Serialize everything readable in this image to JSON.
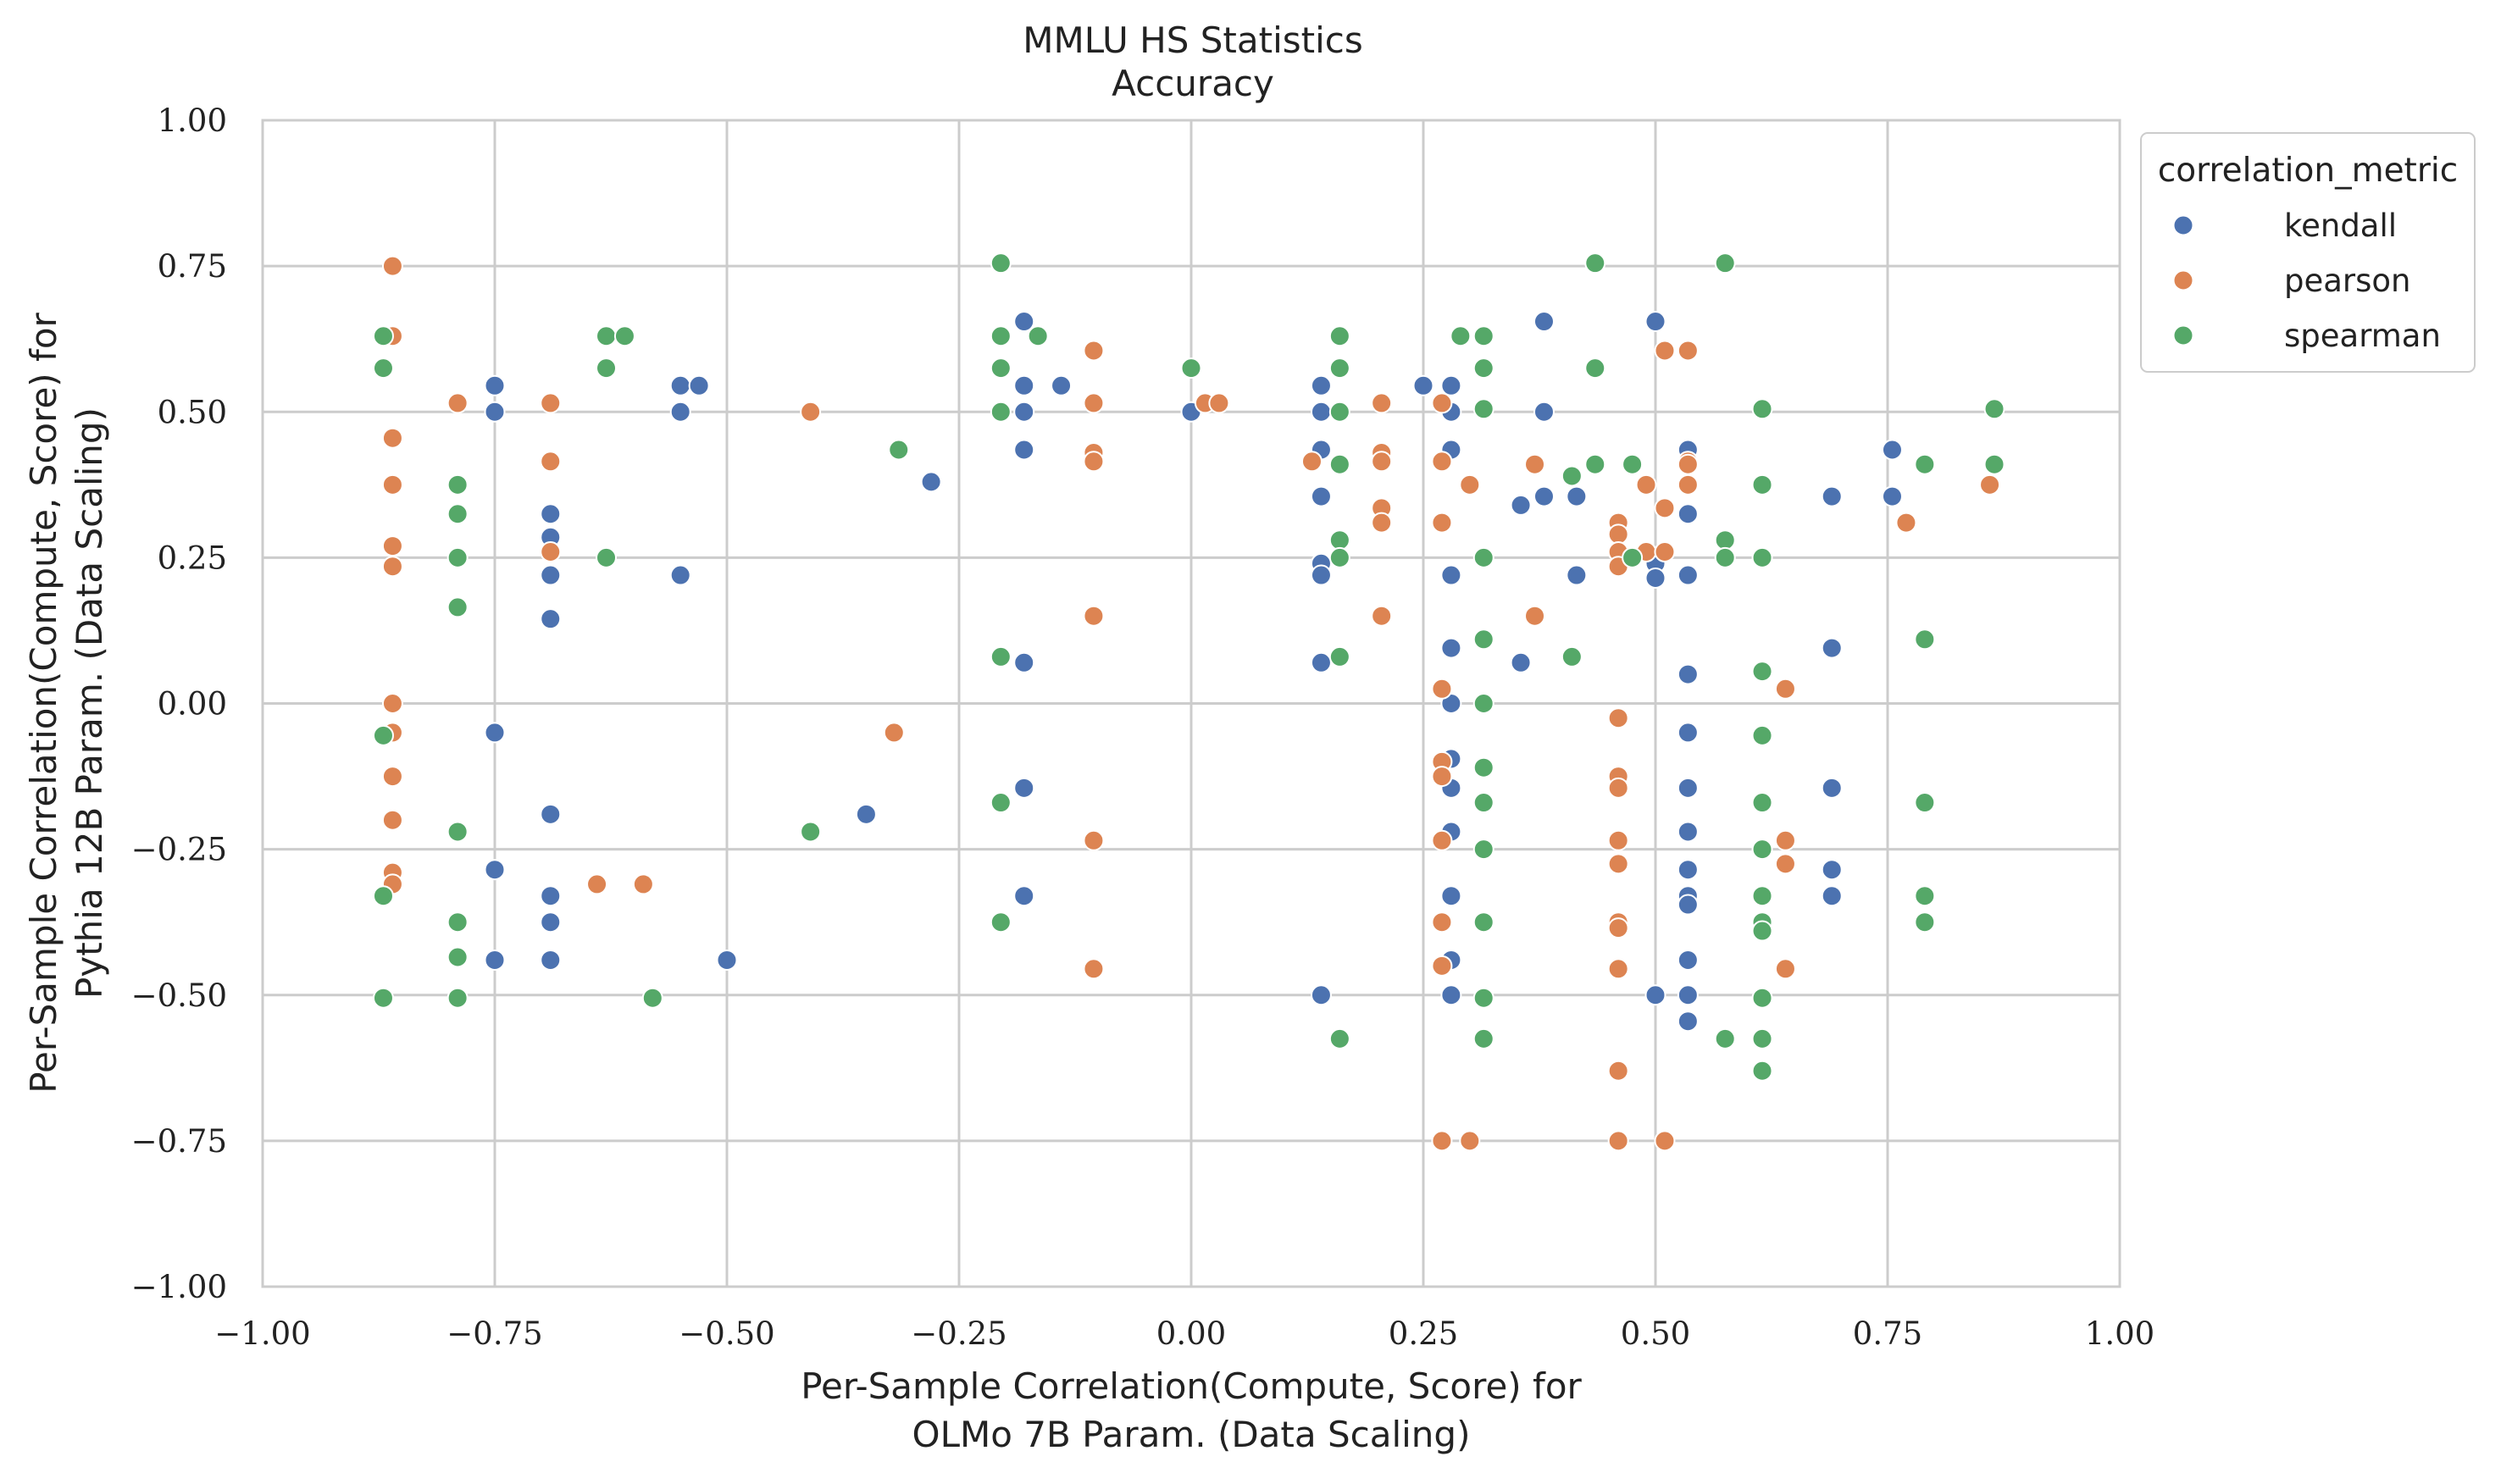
{
  "chart_data": {
    "type": "scatter",
    "title": "MMLU HS Statistics",
    "subtitle": "Accuracy",
    "xlabel": [
      "Per-Sample Correlation(Compute, Score) for",
      "OLMo 7B Param. (Data Scaling)"
    ],
    "ylabel": [
      "Per-Sample Correlation(Compute, Score) for",
      "Pythia 12B Param. (Data Scaling)"
    ],
    "xlim": [
      -1.0,
      1.0
    ],
    "ylim": [
      -1.0,
      1.0
    ],
    "xticks": [
      -1.0,
      -0.75,
      -0.5,
      -0.25,
      0.0,
      0.25,
      0.5,
      0.75,
      1.0
    ],
    "yticks": [
      -1.0,
      -0.75,
      -0.5,
      -0.25,
      0.0,
      0.25,
      0.5,
      0.75,
      1.0
    ],
    "xtick_labels": [
      "−1.00",
      "−0.75",
      "−0.50",
      "−0.25",
      "0.00",
      "0.25",
      "0.50",
      "0.75",
      "1.00"
    ],
    "ytick_labels": [
      "−1.00",
      "−0.75",
      "−0.50",
      "−0.25",
      "0.00",
      "0.25",
      "0.50",
      "0.75",
      "1.00"
    ],
    "grid": true,
    "legend": {
      "title": "correlation_metric",
      "position": "outside-top-right"
    },
    "series": [
      {
        "name": "kendall",
        "color": "#4c72b0",
        "points": [
          [
            -0.75,
            0.545
          ],
          [
            -0.75,
            0.5
          ],
          [
            -0.75,
            -0.05
          ],
          [
            -0.75,
            -0.285
          ],
          [
            -0.75,
            -0.44
          ],
          [
            -0.69,
            0.325
          ],
          [
            -0.69,
            0.285
          ],
          [
            -0.69,
            0.22
          ],
          [
            -0.69,
            0.145
          ],
          [
            -0.69,
            -0.19
          ],
          [
            -0.69,
            -0.33
          ],
          [
            -0.69,
            -0.375
          ],
          [
            -0.69,
            -0.44
          ],
          [
            -0.55,
            0.545
          ],
          [
            -0.53,
            0.545
          ],
          [
            -0.55,
            0.5
          ],
          [
            -0.55,
            0.22
          ],
          [
            -0.5,
            -0.44
          ],
          [
            -0.35,
            -0.19
          ],
          [
            -0.28,
            0.38
          ],
          [
            -0.18,
            0.655
          ],
          [
            -0.18,
            0.545
          ],
          [
            -0.18,
            0.5
          ],
          [
            -0.18,
            0.435
          ],
          [
            -0.18,
            0.07
          ],
          [
            -0.18,
            -0.145
          ],
          [
            -0.18,
            -0.33
          ],
          [
            -0.14,
            0.545
          ],
          [
            0.0,
            0.5
          ],
          [
            0.14,
            0.545
          ],
          [
            0.14,
            0.5
          ],
          [
            0.14,
            0.435
          ],
          [
            0.14,
            0.355
          ],
          [
            0.14,
            0.24
          ],
          [
            0.14,
            0.22
          ],
          [
            0.14,
            0.07
          ],
          [
            0.14,
            -0.5
          ],
          [
            0.25,
            0.545
          ],
          [
            0.28,
            0.545
          ],
          [
            0.28,
            0.5
          ],
          [
            0.28,
            0.435
          ],
          [
            0.28,
            0.22
          ],
          [
            0.28,
            0.095
          ],
          [
            0.28,
            0.0
          ],
          [
            0.28,
            -0.095
          ],
          [
            0.28,
            -0.145
          ],
          [
            0.28,
            -0.22
          ],
          [
            0.28,
            -0.33
          ],
          [
            0.28,
            -0.44
          ],
          [
            0.28,
            -0.5
          ],
          [
            0.355,
            0.34
          ],
          [
            0.355,
            0.07
          ],
          [
            0.38,
            0.655
          ],
          [
            0.38,
            0.5
          ],
          [
            0.38,
            0.355
          ],
          [
            0.415,
            0.355
          ],
          [
            0.415,
            0.22
          ],
          [
            0.5,
            0.655
          ],
          [
            0.5,
            0.24
          ],
          [
            0.5,
            0.215
          ],
          [
            0.5,
            -0.5
          ],
          [
            0.535,
            0.435
          ],
          [
            0.535,
            0.325
          ],
          [
            0.535,
            0.22
          ],
          [
            0.535,
            0.05
          ],
          [
            0.535,
            -0.05
          ],
          [
            0.535,
            -0.145
          ],
          [
            0.535,
            -0.22
          ],
          [
            0.535,
            -0.285
          ],
          [
            0.535,
            -0.33
          ],
          [
            0.535,
            -0.345
          ],
          [
            0.535,
            -0.44
          ],
          [
            0.535,
            -0.5
          ],
          [
            0.535,
            -0.545
          ],
          [
            0.69,
            0.355
          ],
          [
            0.69,
            0.095
          ],
          [
            0.69,
            -0.145
          ],
          [
            0.69,
            -0.285
          ],
          [
            0.69,
            -0.33
          ],
          [
            0.755,
            0.435
          ],
          [
            0.755,
            0.355
          ]
        ]
      },
      {
        "name": "pearson",
        "color": "#dd8452",
        "points": [
          [
            -0.86,
            0.75
          ],
          [
            -0.86,
            0.63
          ],
          [
            -0.86,
            0.455
          ],
          [
            -0.86,
            0.375
          ],
          [
            -0.86,
            0.27
          ],
          [
            -0.86,
            0.235
          ],
          [
            -0.86,
            0.0
          ],
          [
            -0.86,
            -0.05
          ],
          [
            -0.86,
            -0.125
          ],
          [
            -0.86,
            -0.2
          ],
          [
            -0.86,
            -0.29
          ],
          [
            -0.86,
            -0.31
          ],
          [
            -0.79,
            0.515
          ],
          [
            -0.69,
            0.515
          ],
          [
            -0.69,
            0.415
          ],
          [
            -0.69,
            0.26
          ],
          [
            -0.64,
            -0.31
          ],
          [
            -0.59,
            -0.31
          ],
          [
            -0.41,
            0.5
          ],
          [
            -0.32,
            -0.05
          ],
          [
            -0.105,
            0.605
          ],
          [
            -0.105,
            0.515
          ],
          [
            -0.105,
            0.43
          ],
          [
            -0.105,
            0.415
          ],
          [
            -0.105,
            0.15
          ],
          [
            -0.105,
            -0.235
          ],
          [
            -0.105,
            -0.455
          ],
          [
            0.015,
            0.515
          ],
          [
            0.03,
            0.515
          ],
          [
            0.13,
            0.415
          ],
          [
            0.205,
            0.515
          ],
          [
            0.205,
            0.43
          ],
          [
            0.205,
            0.415
          ],
          [
            0.205,
            0.335
          ],
          [
            0.205,
            0.31
          ],
          [
            0.205,
            0.15
          ],
          [
            0.27,
            0.515
          ],
          [
            0.27,
            0.415
          ],
          [
            0.27,
            0.31
          ],
          [
            0.27,
            0.025
          ],
          [
            0.27,
            -0.1
          ],
          [
            0.27,
            -0.125
          ],
          [
            0.27,
            -0.235
          ],
          [
            0.27,
            -0.375
          ],
          [
            0.27,
            -0.45
          ],
          [
            0.27,
            -0.75
          ],
          [
            0.3,
            0.375
          ],
          [
            0.3,
            -0.75
          ],
          [
            0.37,
            0.41
          ],
          [
            0.37,
            0.15
          ],
          [
            0.46,
            0.31
          ],
          [
            0.46,
            0.29
          ],
          [
            0.46,
            0.26
          ],
          [
            0.46,
            0.235
          ],
          [
            0.46,
            -0.025
          ],
          [
            0.46,
            -0.125
          ],
          [
            0.46,
            -0.145
          ],
          [
            0.46,
            -0.235
          ],
          [
            0.46,
            -0.275
          ],
          [
            0.46,
            -0.375
          ],
          [
            0.46,
            -0.385
          ],
          [
            0.46,
            -0.455
          ],
          [
            0.46,
            -0.63
          ],
          [
            0.46,
            -0.75
          ],
          [
            0.49,
            0.375
          ],
          [
            0.49,
            0.26
          ],
          [
            0.51,
            0.605
          ],
          [
            0.51,
            0.335
          ],
          [
            0.51,
            0.26
          ],
          [
            0.51,
            -0.75
          ],
          [
            0.535,
            0.605
          ],
          [
            0.535,
            0.415
          ],
          [
            0.535,
            0.41
          ],
          [
            0.535,
            0.375
          ],
          [
            0.64,
            0.025
          ],
          [
            0.64,
            -0.235
          ],
          [
            0.64,
            -0.275
          ],
          [
            0.64,
            -0.455
          ],
          [
            0.77,
            0.31
          ],
          [
            0.86,
            0.375
          ]
        ]
      },
      {
        "name": "spearman",
        "color": "#55a868",
        "points": [
          [
            -0.87,
            0.63
          ],
          [
            -0.87,
            0.575
          ],
          [
            -0.87,
            -0.055
          ],
          [
            -0.87,
            -0.33
          ],
          [
            -0.87,
            -0.505
          ],
          [
            -0.79,
            0.375
          ],
          [
            -0.79,
            0.325
          ],
          [
            -0.79,
            0.25
          ],
          [
            -0.79,
            0.165
          ],
          [
            -0.79,
            -0.22
          ],
          [
            -0.79,
            -0.375
          ],
          [
            -0.79,
            -0.435
          ],
          [
            -0.79,
            -0.505
          ],
          [
            -0.63,
            0.63
          ],
          [
            -0.61,
            0.63
          ],
          [
            -0.63,
            0.575
          ],
          [
            -0.63,
            0.25
          ],
          [
            -0.58,
            -0.505
          ],
          [
            -0.41,
            -0.22
          ],
          [
            -0.315,
            0.435
          ],
          [
            -0.205,
            0.755
          ],
          [
            -0.205,
            0.63
          ],
          [
            -0.205,
            0.575
          ],
          [
            -0.205,
            0.5
          ],
          [
            -0.205,
            0.08
          ],
          [
            -0.205,
            -0.17
          ],
          [
            -0.205,
            -0.375
          ],
          [
            -0.165,
            0.63
          ],
          [
            0.0,
            0.575
          ],
          [
            0.16,
            0.63
          ],
          [
            0.16,
            0.575
          ],
          [
            0.16,
            0.5
          ],
          [
            0.16,
            0.41
          ],
          [
            0.16,
            0.28
          ],
          [
            0.16,
            0.25
          ],
          [
            0.16,
            0.08
          ],
          [
            0.16,
            -0.575
          ],
          [
            0.29,
            0.63
          ],
          [
            0.315,
            0.63
          ],
          [
            0.315,
            0.575
          ],
          [
            0.315,
            0.505
          ],
          [
            0.315,
            0.25
          ],
          [
            0.315,
            0.11
          ],
          [
            0.315,
            0.0
          ],
          [
            0.315,
            -0.11
          ],
          [
            0.315,
            -0.17
          ],
          [
            0.315,
            -0.25
          ],
          [
            0.315,
            -0.375
          ],
          [
            0.315,
            -0.505
          ],
          [
            0.315,
            -0.575
          ],
          [
            0.41,
            0.39
          ],
          [
            0.41,
            0.08
          ],
          [
            0.435,
            0.755
          ],
          [
            0.435,
            0.575
          ],
          [
            0.435,
            0.41
          ],
          [
            0.475,
            0.41
          ],
          [
            0.475,
            0.25
          ],
          [
            0.575,
            0.755
          ],
          [
            0.575,
            0.28
          ],
          [
            0.575,
            0.25
          ],
          [
            0.575,
            -0.575
          ],
          [
            0.615,
            0.505
          ],
          [
            0.615,
            0.375
          ],
          [
            0.615,
            0.25
          ],
          [
            0.615,
            0.055
          ],
          [
            0.615,
            -0.055
          ],
          [
            0.615,
            -0.17
          ],
          [
            0.615,
            -0.25
          ],
          [
            0.615,
            -0.33
          ],
          [
            0.615,
            -0.375
          ],
          [
            0.615,
            -0.39
          ],
          [
            0.615,
            -0.505
          ],
          [
            0.615,
            -0.575
          ],
          [
            0.615,
            -0.63
          ],
          [
            0.79,
            0.41
          ],
          [
            0.79,
            0.11
          ],
          [
            0.79,
            -0.17
          ],
          [
            0.79,
            -0.33
          ],
          [
            0.79,
            -0.375
          ],
          [
            0.865,
            0.505
          ],
          [
            0.865,
            0.41
          ]
        ]
      }
    ]
  }
}
